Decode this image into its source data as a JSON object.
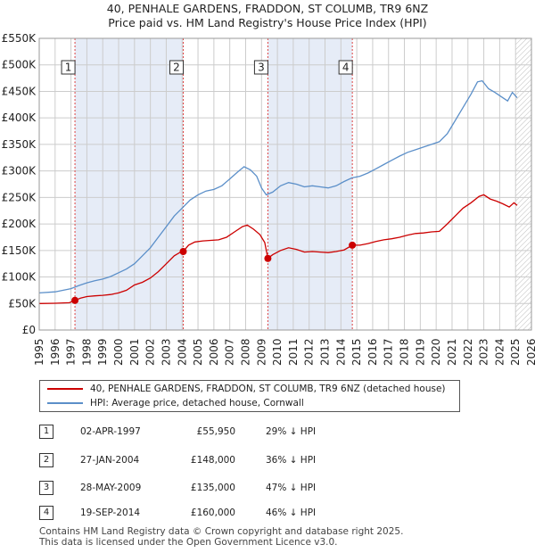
{
  "title_line1": "40, PENHALE GARDENS, FRADDON, ST COLUMB, TR9 6NZ",
  "title_line2": "Price paid vs. HM Land Registry's House Price Index (HPI)",
  "colors": {
    "red": "#cc0000",
    "blue": "#5b8fc9",
    "shade": "#e6ecf7",
    "grid": "#cccccc"
  },
  "chart_data": {
    "type": "line",
    "xlim": [
      1995,
      2026
    ],
    "ylim": [
      0,
      550000
    ],
    "x_ticks": [
      1995,
      1996,
      1997,
      1998,
      1999,
      2000,
      2001,
      2002,
      2003,
      2004,
      2005,
      2006,
      2007,
      2008,
      2009,
      2010,
      2011,
      2012,
      2013,
      2014,
      2015,
      2016,
      2017,
      2018,
      2019,
      2020,
      2021,
      2022,
      2023,
      2024,
      2025,
      2026
    ],
    "y_ticks": [
      {
        "value": 0,
        "label": "£0"
      },
      {
        "value": 50000,
        "label": "£50K"
      },
      {
        "value": 100000,
        "label": "£100K"
      },
      {
        "value": 150000,
        "label": "£150K"
      },
      {
        "value": 200000,
        "label": "£200K"
      },
      {
        "value": 250000,
        "label": "£250K"
      },
      {
        "value": 300000,
        "label": "£300K"
      },
      {
        "value": 350000,
        "label": "£350K"
      },
      {
        "value": 400000,
        "label": "£400K"
      },
      {
        "value": 450000,
        "label": "£450K"
      },
      {
        "value": 500000,
        "label": "£500K"
      },
      {
        "value": 550000,
        "label": "£550K"
      }
    ],
    "hatch_from": 2025.0,
    "shaded_spans": [
      [
        1997.25,
        2004.07
      ],
      [
        2009.4,
        2014.72
      ]
    ],
    "series": [
      {
        "name": "40, PENHALE GARDENS, FRADDON, ST COLUMB, TR9 6NZ (detached house)",
        "color": "#cc0000",
        "points": [
          [
            1995.0,
            50000
          ],
          [
            1996.0,
            50500
          ],
          [
            1996.9,
            51500
          ],
          [
            1997.25,
            55950
          ],
          [
            1997.6,
            60000
          ],
          [
            1998.0,
            63000
          ],
          [
            1998.5,
            64500
          ],
          [
            1999.0,
            65500
          ],
          [
            1999.5,
            67000
          ],
          [
            2000.0,
            70000
          ],
          [
            2000.5,
            75000
          ],
          [
            2001.0,
            85000
          ],
          [
            2001.5,
            90000
          ],
          [
            2002.0,
            98000
          ],
          [
            2002.5,
            110000
          ],
          [
            2003.0,
            125000
          ],
          [
            2003.5,
            140000
          ],
          [
            2003.9,
            147000
          ],
          [
            2004.07,
            148000
          ],
          [
            2004.4,
            160000
          ],
          [
            2004.8,
            166000
          ],
          [
            2005.3,
            168000
          ],
          [
            2005.8,
            169000
          ],
          [
            2006.3,
            170000
          ],
          [
            2006.8,
            175000
          ],
          [
            2007.3,
            185000
          ],
          [
            2007.8,
            195000
          ],
          [
            2008.1,
            198000
          ],
          [
            2008.5,
            190000
          ],
          [
            2008.9,
            180000
          ],
          [
            2009.2,
            165000
          ],
          [
            2009.4,
            135000
          ],
          [
            2009.7,
            142000
          ],
          [
            2010.2,
            150000
          ],
          [
            2010.7,
            155000
          ],
          [
            2011.2,
            152000
          ],
          [
            2011.7,
            147000
          ],
          [
            2012.2,
            148000
          ],
          [
            2012.7,
            147000
          ],
          [
            2013.2,
            146000
          ],
          [
            2013.7,
            148000
          ],
          [
            2014.2,
            151000
          ],
          [
            2014.72,
            160000
          ],
          [
            2015.2,
            160000
          ],
          [
            2015.7,
            163000
          ],
          [
            2016.2,
            167000
          ],
          [
            2016.7,
            170000
          ],
          [
            2017.2,
            172000
          ],
          [
            2017.7,
            175000
          ],
          [
            2018.2,
            179000
          ],
          [
            2018.7,
            182000
          ],
          [
            2019.2,
            183000
          ],
          [
            2019.7,
            185000
          ],
          [
            2020.2,
            186000
          ],
          [
            2020.7,
            200000
          ],
          [
            2021.2,
            215000
          ],
          [
            2021.7,
            230000
          ],
          [
            2022.2,
            240000
          ],
          [
            2022.7,
            252000
          ],
          [
            2023.0,
            255000
          ],
          [
            2023.4,
            247000
          ],
          [
            2023.8,
            243000
          ],
          [
            2024.2,
            238000
          ],
          [
            2024.6,
            232000
          ],
          [
            2024.9,
            240000
          ],
          [
            2025.1,
            235000
          ]
        ]
      },
      {
        "name": "HPI: Average price, detached house, Cornwall",
        "color": "#5b8fc9",
        "points": [
          [
            1995.0,
            70000
          ],
          [
            1996.0,
            72000
          ],
          [
            1997.0,
            78000
          ],
          [
            1997.5,
            84000
          ],
          [
            1998.0,
            89000
          ],
          [
            1998.5,
            93000
          ],
          [
            1999.0,
            96000
          ],
          [
            1999.5,
            101000
          ],
          [
            2000.0,
            108000
          ],
          [
            2000.5,
            115000
          ],
          [
            2001.0,
            125000
          ],
          [
            2001.5,
            140000
          ],
          [
            2002.0,
            155000
          ],
          [
            2002.5,
            175000
          ],
          [
            2003.0,
            195000
          ],
          [
            2003.5,
            215000
          ],
          [
            2004.0,
            230000
          ],
          [
            2004.5,
            245000
          ],
          [
            2005.0,
            255000
          ],
          [
            2005.5,
            262000
          ],
          [
            2006.0,
            265000
          ],
          [
            2006.5,
            272000
          ],
          [
            2007.0,
            285000
          ],
          [
            2007.5,
            298000
          ],
          [
            2007.9,
            308000
          ],
          [
            2008.3,
            302000
          ],
          [
            2008.7,
            290000
          ],
          [
            2009.0,
            268000
          ],
          [
            2009.3,
            255000
          ],
          [
            2009.7,
            260000
          ],
          [
            2010.2,
            272000
          ],
          [
            2010.7,
            278000
          ],
          [
            2011.2,
            275000
          ],
          [
            2011.7,
            270000
          ],
          [
            2012.2,
            272000
          ],
          [
            2012.7,
            270000
          ],
          [
            2013.2,
            268000
          ],
          [
            2013.7,
            272000
          ],
          [
            2014.2,
            280000
          ],
          [
            2014.7,
            287000
          ],
          [
            2015.2,
            290000
          ],
          [
            2015.7,
            296000
          ],
          [
            2016.2,
            304000
          ],
          [
            2016.7,
            312000
          ],
          [
            2017.2,
            320000
          ],
          [
            2017.7,
            328000
          ],
          [
            2018.2,
            335000
          ],
          [
            2018.7,
            340000
          ],
          [
            2019.2,
            345000
          ],
          [
            2019.7,
            350000
          ],
          [
            2020.2,
            355000
          ],
          [
            2020.7,
            370000
          ],
          [
            2021.2,
            395000
          ],
          [
            2021.7,
            420000
          ],
          [
            2022.2,
            445000
          ],
          [
            2022.6,
            468000
          ],
          [
            2022.9,
            470000
          ],
          [
            2023.3,
            455000
          ],
          [
            2023.7,
            448000
          ],
          [
            2024.1,
            440000
          ],
          [
            2024.5,
            432000
          ],
          [
            2024.8,
            448000
          ],
          [
            2025.1,
            438000
          ]
        ]
      }
    ],
    "sales": [
      {
        "n": "1",
        "x": 1997.25,
        "y": 55950
      },
      {
        "n": "2",
        "x": 2004.07,
        "y": 148000
      },
      {
        "n": "3",
        "x": 2009.4,
        "y": 135000
      },
      {
        "n": "4",
        "x": 2014.72,
        "y": 160000
      }
    ]
  },
  "legend": {
    "red_label": "40, PENHALE GARDENS, FRADDON, ST COLUMB, TR9 6NZ (detached house)",
    "blue_label": "HPI: Average price, detached house, Cornwall"
  },
  "sales_table": [
    {
      "n": "1",
      "date": "02-APR-1997",
      "price": "£55,950",
      "hpi": "29% ↓ HPI"
    },
    {
      "n": "2",
      "date": "27-JAN-2004",
      "price": "£148,000",
      "hpi": "36% ↓ HPI"
    },
    {
      "n": "3",
      "date": "28-MAY-2009",
      "price": "£135,000",
      "hpi": "47% ↓ HPI"
    },
    {
      "n": "4",
      "date": "19-SEP-2014",
      "price": "£160,000",
      "hpi": "46% ↓ HPI"
    }
  ],
  "footer": {
    "line1": "Contains HM Land Registry data © Crown copyright and database right 2025.",
    "line2": "This data is licensed under the Open Government Licence v3.0."
  }
}
